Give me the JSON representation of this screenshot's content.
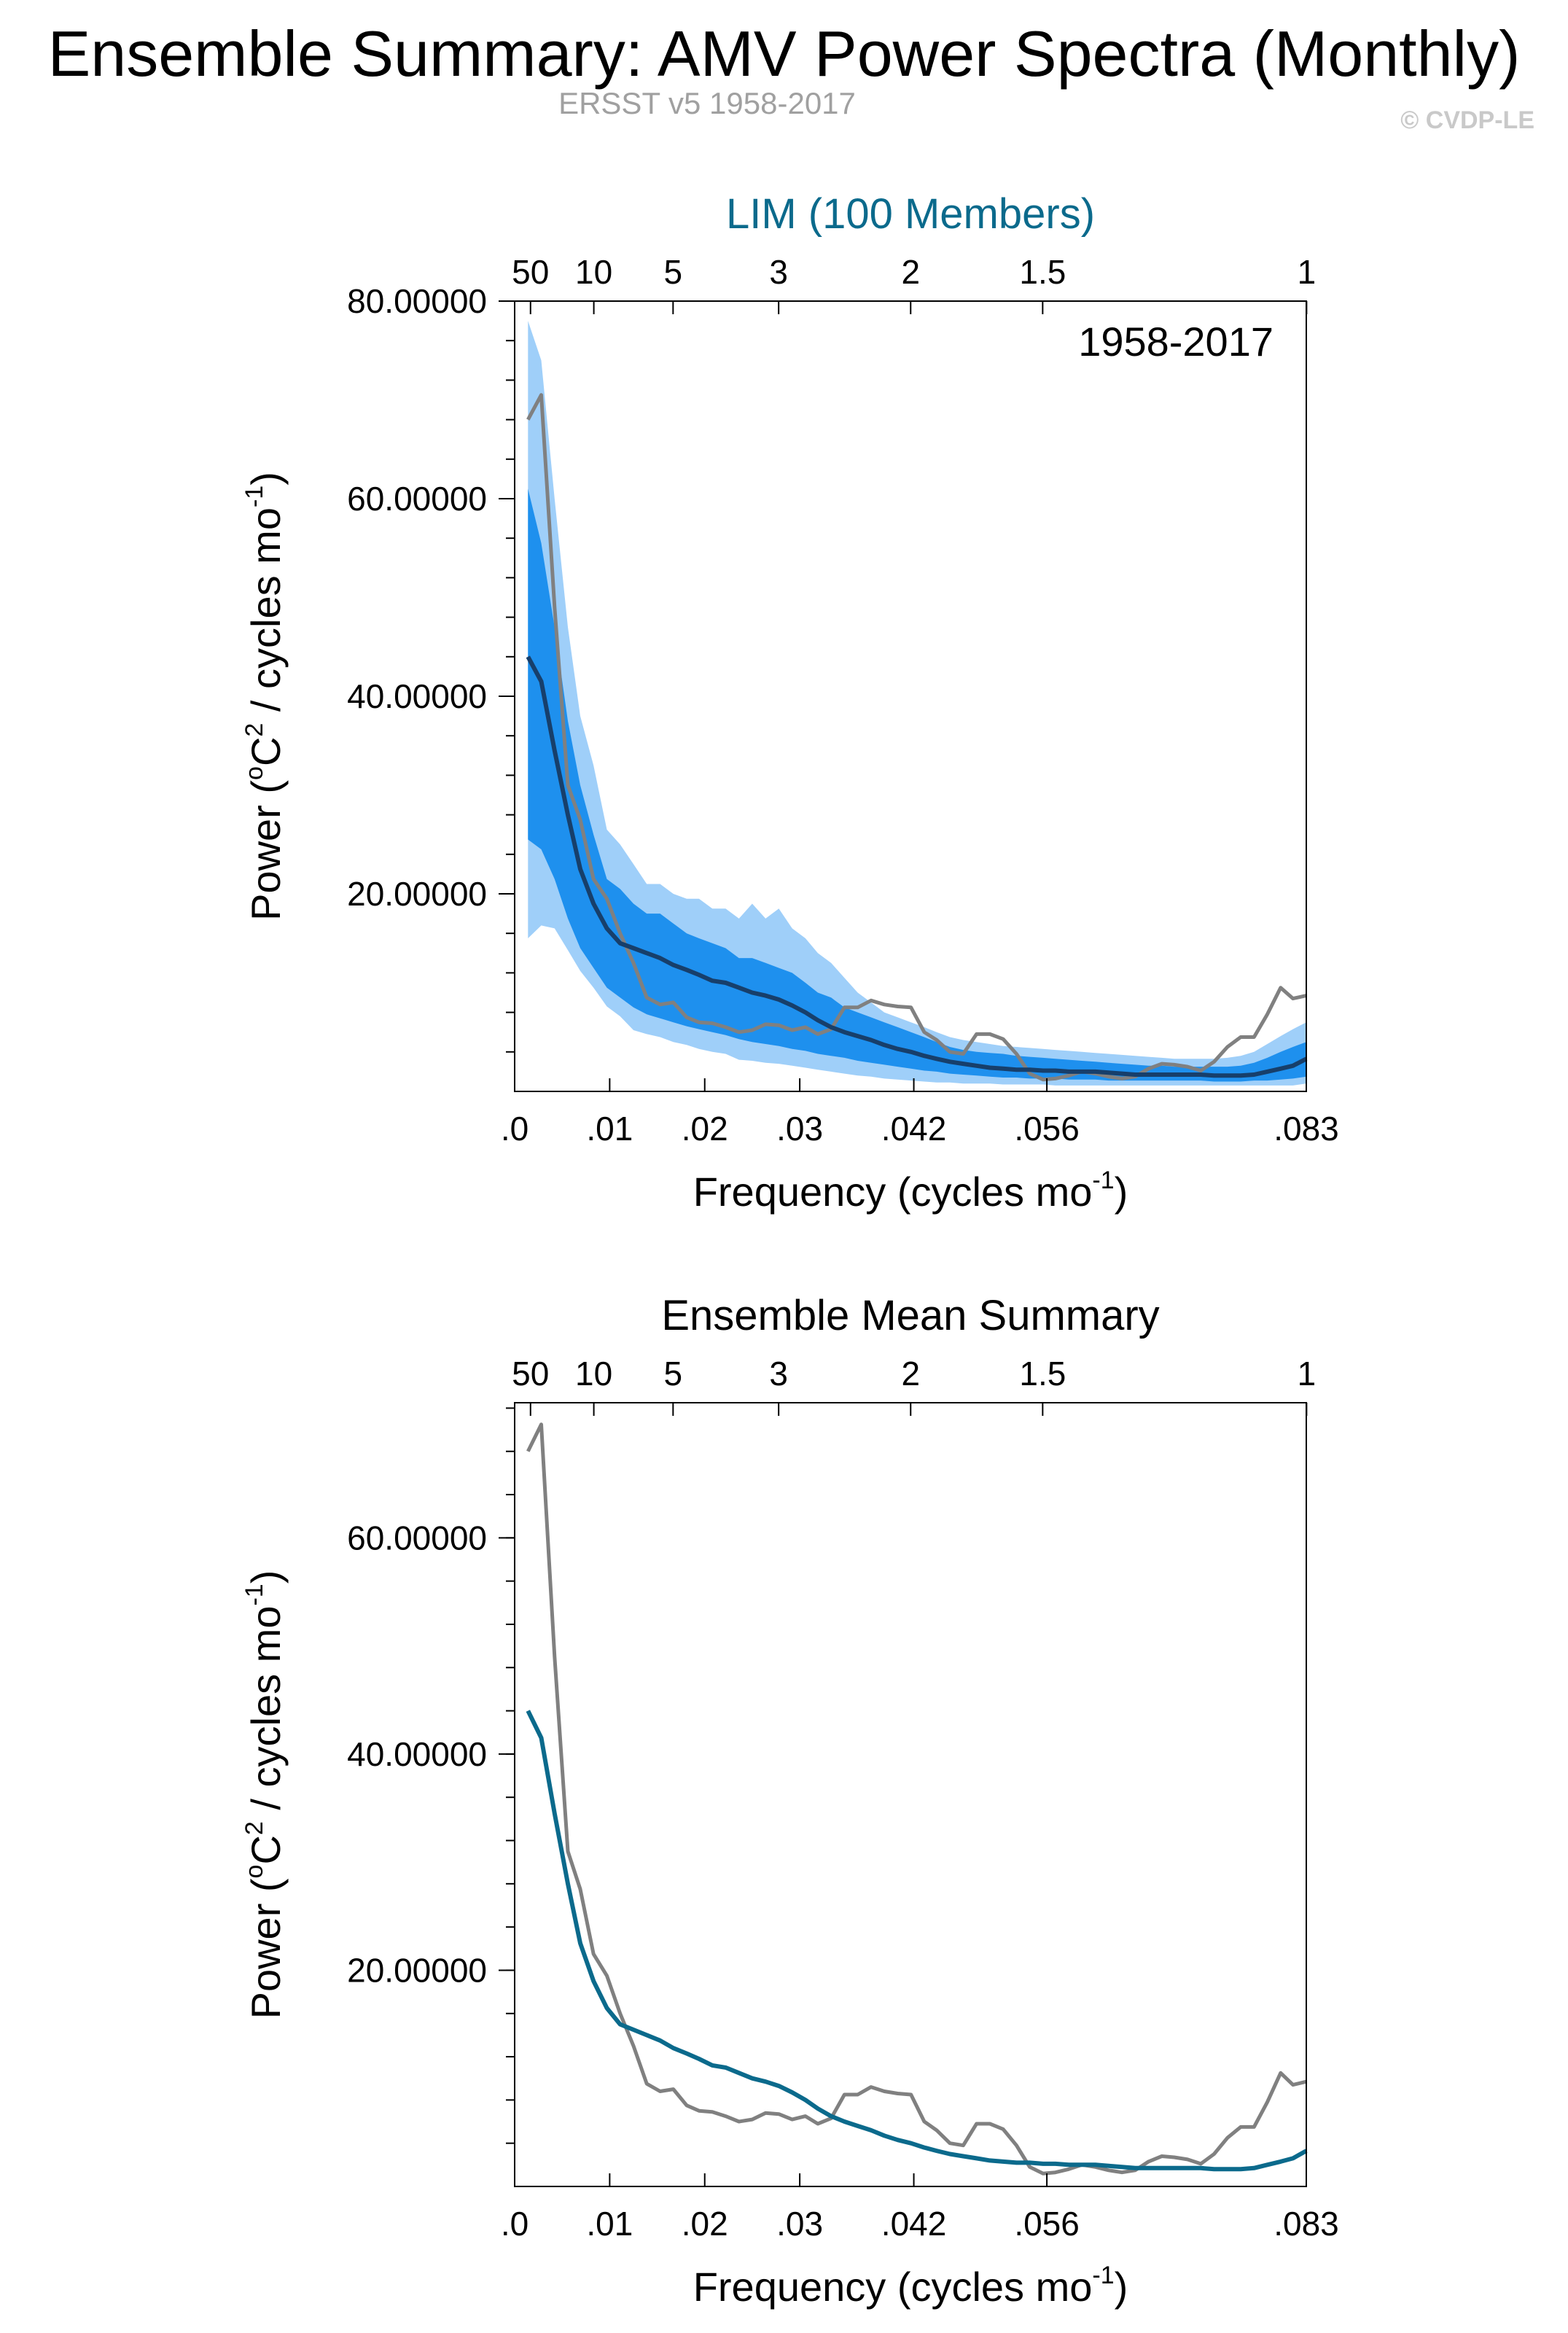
{
  "figure": {
    "title": "Ensemble Summary: AMV Power Spectra (Monthly)",
    "subtitle": "ERSST v5 1958-2017",
    "credit": "© CVDP-LE"
  },
  "colors": {
    "ensemble_mean_line": "#173f6b",
    "mean_summary_line": "#0b6a8c",
    "observed_line": "#808080",
    "inner_band": "#1e90ee",
    "outer_band": "#9fcff9",
    "top_title_color": "#0b6a8c"
  },
  "chart_data": [
    {
      "type": "line",
      "title": "LIM (100 Members)",
      "annotation": "1958-2017",
      "xlabel": "Frequency (cycles mo",
      "xlabel_sup": "-1",
      "xlabel_end": ")",
      "ylabel_parts": [
        "Power (",
        "o",
        "C",
        "2",
        " / cycles mo",
        "-1",
        ")"
      ],
      "xlim": [
        0,
        0.0833
      ],
      "ylim": [
        0,
        80
      ],
      "bottom_ticks": [
        {
          "value": 0,
          "label": ".0"
        },
        {
          "value": 0.01,
          "label": ".01"
        },
        {
          "value": 0.02,
          "label": ".02"
        },
        {
          "value": 0.03,
          "label": ".03"
        },
        {
          "value": 0.042,
          "label": ".042"
        },
        {
          "value": 0.056,
          "label": ".056"
        },
        {
          "value": 0.0833,
          "label": ".083"
        }
      ],
      "top_ticks": [
        {
          "value": 0.00167,
          "label": "50"
        },
        {
          "value": 0.00833,
          "label": "10"
        },
        {
          "value": 0.01667,
          "label": "5"
        },
        {
          "value": 0.02778,
          "label": "3"
        },
        {
          "value": 0.04167,
          "label": "2"
        },
        {
          "value": 0.05556,
          "label": "1.5"
        },
        {
          "value": 0.08333,
          "label": "1"
        }
      ],
      "y_ticks": [
        {
          "value": 20,
          "label": "20.00000"
        },
        {
          "value": 40,
          "label": "40.00000"
        },
        {
          "value": 60,
          "label": "60.00000"
        },
        {
          "value": 80,
          "label": "80.00000"
        }
      ],
      "y_minor_step": 4,
      "x": [
        0.0014,
        0.0028,
        0.0042,
        0.0056,
        0.0069,
        0.0083,
        0.0097,
        0.0111,
        0.0125,
        0.0139,
        0.0153,
        0.0167,
        0.0181,
        0.0194,
        0.0208,
        0.0222,
        0.0236,
        0.025,
        0.0264,
        0.0278,
        0.0292,
        0.0306,
        0.0319,
        0.0333,
        0.0347,
        0.0361,
        0.0375,
        0.0389,
        0.0403,
        0.0417,
        0.0431,
        0.0444,
        0.0458,
        0.0472,
        0.0486,
        0.05,
        0.0514,
        0.0528,
        0.0542,
        0.0556,
        0.0569,
        0.0583,
        0.0597,
        0.0611,
        0.0625,
        0.0639,
        0.0653,
        0.0667,
        0.0681,
        0.0694,
        0.0708,
        0.0722,
        0.0736,
        0.075,
        0.0764,
        0.0778,
        0.0792,
        0.0806,
        0.0819,
        0.0833
      ],
      "series": [
        {
          "name": "",
          "role": "outer_low",
          "values": [
            15.5,
            16.8,
            16.5,
            14.3,
            12.2,
            10.5,
            8.6,
            7.6,
            6.2,
            5.8,
            5.5,
            5.0,
            4.7,
            4.3,
            4.0,
            3.8,
            3.2,
            3.1,
            2.9,
            2.8,
            2.6,
            2.4,
            2.2,
            2.0,
            1.8,
            1.6,
            1.5,
            1.3,
            1.2,
            1.1,
            1.0,
            0.9,
            0.9,
            0.8,
            0.8,
            0.8,
            0.7,
            0.7,
            0.7,
            0.7,
            0.6,
            0.6,
            0.6,
            0.6,
            0.6,
            0.6,
            0.6,
            0.6,
            0.6,
            0.6,
            0.6,
            0.6,
            0.6,
            0.6,
            0.6,
            0.6,
            0.6,
            0.6,
            0.6,
            0.8
          ]
        },
        {
          "name": "",
          "role": "inner_low",
          "values": [
            25.5,
            24.5,
            21.5,
            17.5,
            14.5,
            12.5,
            10.5,
            9.5,
            8.5,
            7.8,
            7.4,
            7.0,
            6.6,
            6.3,
            6.0,
            5.7,
            5.3,
            5.0,
            4.8,
            4.6,
            4.3,
            4.1,
            3.8,
            3.6,
            3.4,
            3.1,
            2.9,
            2.7,
            2.5,
            2.3,
            2.1,
            2.0,
            1.8,
            1.7,
            1.6,
            1.5,
            1.4,
            1.4,
            1.3,
            1.3,
            1.3,
            1.2,
            1.2,
            1.2,
            1.1,
            1.1,
            1.1,
            1.1,
            1.1,
            1.1,
            1.1,
            1.1,
            1.0,
            1.0,
            1.0,
            1.1,
            1.1,
            1.2,
            1.3,
            1.5
          ]
        },
        {
          "name": "",
          "role": "inner_high",
          "values": [
            61.0,
            55.5,
            47.0,
            37.5,
            31.0,
            26.0,
            21.5,
            20.5,
            19.0,
            18.0,
            18.0,
            17.0,
            16.0,
            15.5,
            15.0,
            14.5,
            13.5,
            13.5,
            13.0,
            12.5,
            12.0,
            11.0,
            10.0,
            9.5,
            8.5,
            8.0,
            7.5,
            7.0,
            6.5,
            6.0,
            5.5,
            5.0,
            4.5,
            4.2,
            4.0,
            3.9,
            3.8,
            3.6,
            3.5,
            3.4,
            3.3,
            3.2,
            3.1,
            3.0,
            2.9,
            2.8,
            2.7,
            2.6,
            2.6,
            2.5,
            2.5,
            2.5,
            2.5,
            2.5,
            2.6,
            2.9,
            3.4,
            4.0,
            4.5,
            5.0
          ]
        },
        {
          "name": "",
          "role": "outer_high",
          "values": [
            78.0,
            74.0,
            60.0,
            47.0,
            38.0,
            33.0,
            26.5,
            25.0,
            23.0,
            21.0,
            21.0,
            20.0,
            19.5,
            19.5,
            18.5,
            18.5,
            17.5,
            19.0,
            17.5,
            18.5,
            16.5,
            15.5,
            14.0,
            13.0,
            11.5,
            10.0,
            9.0,
            8.0,
            7.5,
            7.0,
            6.5,
            6.0,
            5.5,
            5.2,
            5.0,
            4.8,
            4.6,
            4.5,
            4.4,
            4.3,
            4.2,
            4.1,
            4.0,
            3.9,
            3.8,
            3.7,
            3.6,
            3.5,
            3.4,
            3.3,
            3.3,
            3.3,
            3.3,
            3.4,
            3.6,
            4.0,
            4.8,
            5.6,
            6.3,
            7.0
          ]
        },
        {
          "name": "",
          "role": "ensemble_mean",
          "values": [
            44.0,
            41.5,
            34.5,
            28.0,
            22.5,
            19.0,
            16.5,
            15.0,
            14.5,
            14.0,
            13.5,
            12.8,
            12.3,
            11.8,
            11.2,
            11.0,
            10.5,
            10.0,
            9.7,
            9.3,
            8.7,
            8.0,
            7.2,
            6.5,
            6.0,
            5.6,
            5.2,
            4.7,
            4.3,
            4.0,
            3.6,
            3.3,
            3.0,
            2.8,
            2.6,
            2.4,
            2.3,
            2.2,
            2.2,
            2.1,
            2.1,
            2.0,
            2.0,
            2.0,
            1.9,
            1.8,
            1.7,
            1.7,
            1.7,
            1.7,
            1.7,
            1.7,
            1.6,
            1.6,
            1.6,
            1.7,
            2.0,
            2.3,
            2.6,
            3.3
          ]
        },
        {
          "name": "",
          "role": "observed",
          "values": [
            68.0,
            70.5,
            49.0,
            31.0,
            27.5,
            21.5,
            19.5,
            16.0,
            13.0,
            9.5,
            8.8,
            9.0,
            7.5,
            7.0,
            6.9,
            6.5,
            6.0,
            6.2,
            6.8,
            6.7,
            6.2,
            6.5,
            5.8,
            6.3,
            8.5,
            8.5,
            9.2,
            8.8,
            8.6,
            8.5,
            6.0,
            5.2,
            4.0,
            3.8,
            5.8,
            5.8,
            5.3,
            3.8,
            1.8,
            1.2,
            1.3,
            1.6,
            2.0,
            1.8,
            1.5,
            1.3,
            1.5,
            2.3,
            2.8,
            2.7,
            2.5,
            2.1,
            3.0,
            4.5,
            5.5,
            5.5,
            7.8,
            10.5,
            9.4,
            9.7
          ]
        }
      ]
    },
    {
      "type": "line",
      "title": "Ensemble Mean Summary",
      "xlabel": "Frequency (cycles mo",
      "xlabel_sup": "-1",
      "xlabel_end": ")",
      "ylabel_parts": [
        "Power (",
        "o",
        "C",
        "2",
        " / cycles mo",
        "-1",
        ")"
      ],
      "xlim": [
        0,
        0.0833
      ],
      "ylim": [
        0,
        72.5
      ],
      "bottom_ticks": [
        {
          "value": 0,
          "label": ".0"
        },
        {
          "value": 0.01,
          "label": ".01"
        },
        {
          "value": 0.02,
          "label": ".02"
        },
        {
          "value": 0.03,
          "label": ".03"
        },
        {
          "value": 0.042,
          "label": ".042"
        },
        {
          "value": 0.056,
          "label": ".056"
        },
        {
          "value": 0.0833,
          "label": ".083"
        }
      ],
      "top_ticks": [
        {
          "value": 0.00167,
          "label": "50"
        },
        {
          "value": 0.00833,
          "label": "10"
        },
        {
          "value": 0.01667,
          "label": "5"
        },
        {
          "value": 0.02778,
          "label": "3"
        },
        {
          "value": 0.04167,
          "label": "2"
        },
        {
          "value": 0.05556,
          "label": "1.5"
        },
        {
          "value": 0.08333,
          "label": "1"
        }
      ],
      "y_ticks": [
        {
          "value": 20,
          "label": "20.00000"
        },
        {
          "value": 40,
          "label": "40.00000"
        },
        {
          "value": 60,
          "label": "60.00000"
        }
      ],
      "y_minor_step": 4,
      "x": [
        0.0014,
        0.0028,
        0.0042,
        0.0056,
        0.0069,
        0.0083,
        0.0097,
        0.0111,
        0.0125,
        0.0139,
        0.0153,
        0.0167,
        0.0181,
        0.0194,
        0.0208,
        0.0222,
        0.0236,
        0.025,
        0.0264,
        0.0278,
        0.0292,
        0.0306,
        0.0319,
        0.0333,
        0.0347,
        0.0361,
        0.0375,
        0.0389,
        0.0403,
        0.0417,
        0.0431,
        0.0444,
        0.0458,
        0.0472,
        0.0486,
        0.05,
        0.0514,
        0.0528,
        0.0542,
        0.0556,
        0.0569,
        0.0583,
        0.0597,
        0.0611,
        0.0625,
        0.0639,
        0.0653,
        0.0667,
        0.0681,
        0.0694,
        0.0708,
        0.0722,
        0.0736,
        0.075,
        0.0764,
        0.0778,
        0.0792,
        0.0806,
        0.0819,
        0.0833
      ],
      "series": [
        {
          "name": "",
          "role": "mean_summary",
          "values": [
            44.0,
            41.5,
            34.5,
            28.0,
            22.5,
            19.0,
            16.5,
            15.0,
            14.5,
            14.0,
            13.5,
            12.8,
            12.3,
            11.8,
            11.2,
            11.0,
            10.5,
            10.0,
            9.7,
            9.3,
            8.7,
            8.0,
            7.2,
            6.5,
            6.0,
            5.6,
            5.2,
            4.7,
            4.3,
            4.0,
            3.6,
            3.3,
            3.0,
            2.8,
            2.6,
            2.4,
            2.3,
            2.2,
            2.2,
            2.1,
            2.1,
            2.0,
            2.0,
            2.0,
            1.9,
            1.8,
            1.7,
            1.7,
            1.7,
            1.7,
            1.7,
            1.7,
            1.6,
            1.6,
            1.6,
            1.7,
            2.0,
            2.3,
            2.6,
            3.3
          ]
        },
        {
          "name": "",
          "role": "observed",
          "values": [
            68.0,
            70.5,
            49.0,
            31.0,
            27.5,
            21.5,
            19.5,
            16.0,
            13.0,
            9.5,
            8.8,
            9.0,
            7.5,
            7.0,
            6.9,
            6.5,
            6.0,
            6.2,
            6.8,
            6.7,
            6.2,
            6.5,
            5.8,
            6.3,
            8.5,
            8.5,
            9.2,
            8.8,
            8.6,
            8.5,
            6.0,
            5.2,
            4.0,
            3.8,
            5.8,
            5.8,
            5.3,
            3.8,
            1.8,
            1.2,
            1.3,
            1.6,
            2.0,
            1.8,
            1.5,
            1.3,
            1.5,
            2.3,
            2.8,
            2.7,
            2.5,
            2.1,
            3.0,
            4.5,
            5.5,
            5.5,
            7.8,
            10.5,
            9.4,
            9.7
          ]
        }
      ]
    }
  ]
}
